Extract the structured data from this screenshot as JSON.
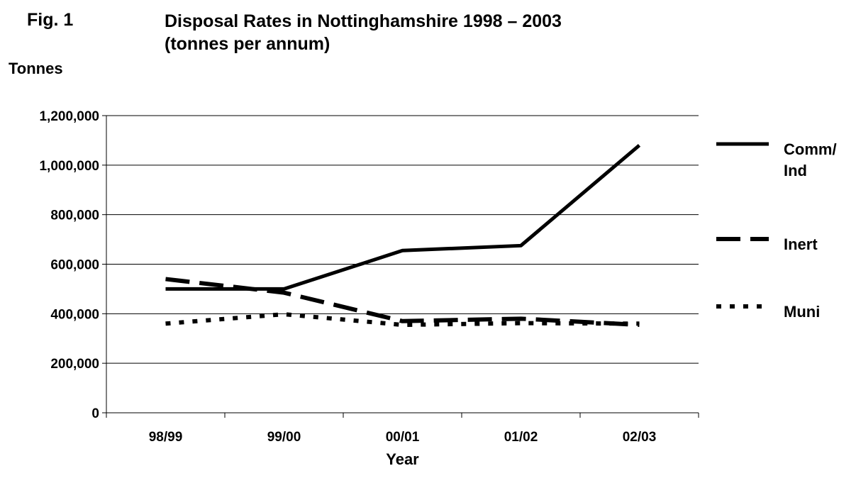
{
  "figure": {
    "label": "Fig. 1",
    "title_line1": "Disposal Rates in Nottinghamshire 1998 – 2003",
    "title_line2": "(tonnes per annum)"
  },
  "chart_data": {
    "type": "line",
    "title": "Disposal Rates in Nottinghamshire 1998 – 2003 (tonnes per annum)",
    "xlabel": "Year",
    "ylabel": "Tonnes",
    "categories": [
      "98/99",
      "99/00",
      "00/01",
      "01/02",
      "02/03"
    ],
    "ylim": [
      0,
      1200000
    ],
    "yticks": [
      0,
      200000,
      400000,
      600000,
      800000,
      1000000,
      1200000
    ],
    "ytick_labels": [
      "0",
      "200,000",
      "400,000",
      "600,000",
      "800,000",
      "1,000,000",
      "1,200,000"
    ],
    "grid": true,
    "legend_position": "right",
    "series": [
      {
        "name": "Comm/ Ind",
        "legend_lines": [
          "Comm/",
          "Ind"
        ],
        "style": "solid",
        "values": [
          500000,
          500000,
          655000,
          675000,
          1080000
        ]
      },
      {
        "name": "Inert",
        "legend_lines": [
          "Inert"
        ],
        "style": "dashed",
        "values": [
          540000,
          485000,
          370000,
          380000,
          355000
        ]
      },
      {
        "name": "Muni",
        "legend_lines": [
          "Muni"
        ],
        "style": "dotted",
        "values": [
          360000,
          398000,
          355000,
          362000,
          360000
        ]
      }
    ]
  }
}
